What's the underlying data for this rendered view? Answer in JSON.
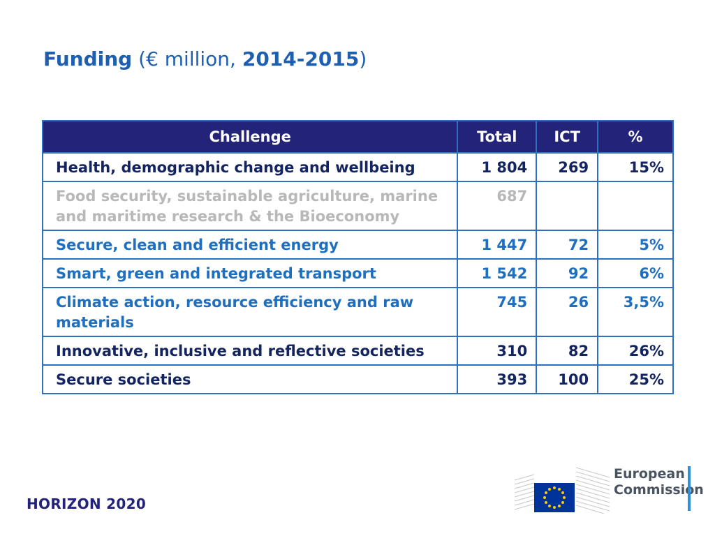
{
  "title": {
    "funding": "Funding",
    "open": "(",
    "unit": "€ million, ",
    "years": "2014-2015",
    "close": ")"
  },
  "table": {
    "headers": [
      "Challenge",
      "Total",
      "ICT",
      "%"
    ],
    "rows": [
      {
        "challenge": "Health, demographic change and wellbeing",
        "total": "1 804",
        "ict": "269",
        "pct": "15%",
        "color": "#13245e"
      },
      {
        "challenge": "Food security, sustainable agriculture, marine and maritime research & the Bioeconomy",
        "total": "687",
        "ict": "",
        "pct": "",
        "color": "#b8b8b8"
      },
      {
        "challenge": "Secure, clean and efficient energy",
        "total": "1 447",
        "ict": "72",
        "pct": "5%",
        "color": "#1f6fc0"
      },
      {
        "challenge": "Smart, green and integrated transport",
        "total": "1 542",
        "ict": "92",
        "pct": "6%",
        "color": "#1f6fc0"
      },
      {
        "challenge": "Climate action, resource efficiency and raw materials",
        "total": "745",
        "ict": "26",
        "pct": "3,5%",
        "color": "#1f6fc0"
      },
      {
        "challenge": "Innovative, inclusive and reflective societies",
        "total": "310",
        "ict": "82",
        "pct": "26%",
        "color": "#13245e"
      },
      {
        "challenge": "Secure societies",
        "total": "393",
        "ict": "100",
        "pct": "25%",
        "color": "#13245e"
      }
    ]
  },
  "footer": {
    "program": "HORIZON 2020",
    "ec_line1": "European",
    "ec_line2": "Commission"
  },
  "colors": {
    "header_bg": "#23237a",
    "border": "#2f6fc0",
    "title": "#1f5fb0",
    "eu_blue": "#003399",
    "eu_star": "#ffcc00"
  }
}
